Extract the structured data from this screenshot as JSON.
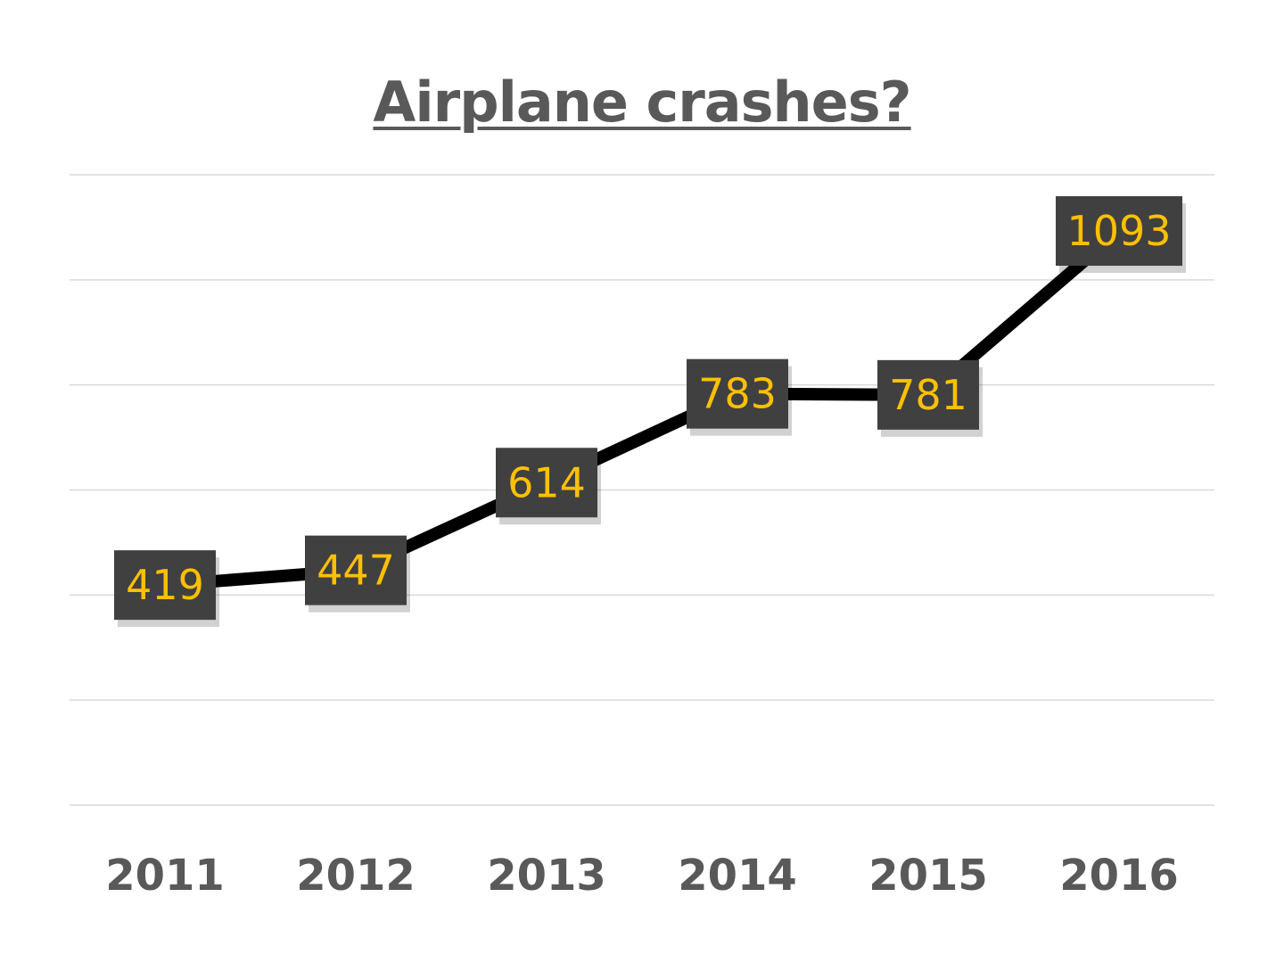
{
  "chart_data": {
    "type": "line",
    "title": "Airplane crashes?",
    "xlabel": "",
    "ylabel": "",
    "categories": [
      "2011",
      "2012",
      "2013",
      "2014",
      "2015",
      "2016"
    ],
    "series": [
      {
        "values": [
          419,
          447,
          614,
          783,
          781,
          1093
        ]
      }
    ],
    "data_labels": [
      "419",
      "447",
      "614",
      "783",
      "781",
      "1093"
    ],
    "ylim": [
      0,
      1200
    ],
    "y_axis_visible": false,
    "grid": true,
    "legend": "none",
    "colors": {
      "line": "#000000",
      "label_box": "#404040",
      "label_text": "#ffc000",
      "title": "#595959",
      "tick_text": "#595959",
      "grid": "#d9d9d9"
    }
  }
}
